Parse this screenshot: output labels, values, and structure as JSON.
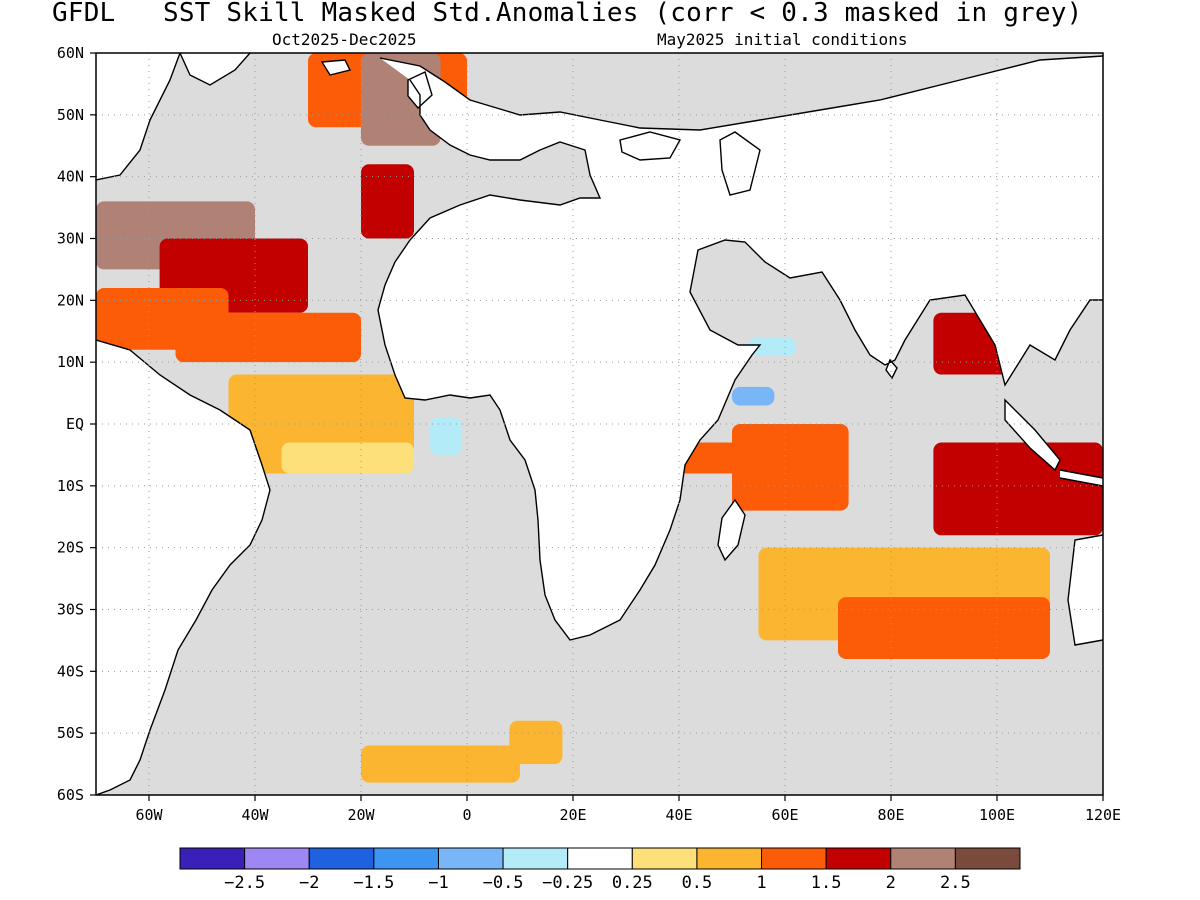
{
  "title": "GFDL   SST Skill Masked Std.Anomalies (corr < 0.3 masked in grey)",
  "subtitle_left": "Oct2025-Dec2025",
  "subtitle_right": "May2025 initial conditions",
  "map": {
    "lon_range": [
      -70,
      120
    ],
    "lat_range": [
      -60,
      60
    ],
    "gridlines": "dotted",
    "mask_color": "#dcdcdc",
    "land_color": "#ffffff",
    "coastline_color": "#000000"
  },
  "lat_ticks": [
    {
      "value": 60,
      "label": "60N"
    },
    {
      "value": 50,
      "label": "50N"
    },
    {
      "value": 40,
      "label": "40N"
    },
    {
      "value": 30,
      "label": "30N"
    },
    {
      "value": 20,
      "label": "20N"
    },
    {
      "value": 10,
      "label": "10N"
    },
    {
      "value": 0,
      "label": "EQ"
    },
    {
      "value": -10,
      "label": "10S"
    },
    {
      "value": -20,
      "label": "20S"
    },
    {
      "value": -30,
      "label": "30S"
    },
    {
      "value": -40,
      "label": "40S"
    },
    {
      "value": -50,
      "label": "50S"
    },
    {
      "value": -60,
      "label": "60S"
    }
  ],
  "lon_ticks": [
    {
      "value": -60,
      "label": "60W"
    },
    {
      "value": -40,
      "label": "40W"
    },
    {
      "value": -20,
      "label": "20W"
    },
    {
      "value": 0,
      "label": "0"
    },
    {
      "value": 20,
      "label": "20E"
    },
    {
      "value": 40,
      "label": "40E"
    },
    {
      "value": 60,
      "label": "60E"
    },
    {
      "value": 80,
      "label": "80E"
    },
    {
      "value": 100,
      "label": "100E"
    },
    {
      "value": 120,
      "label": "120E"
    }
  ],
  "colorbar": {
    "colors": [
      "#3a1fb8",
      "#9e87f3",
      "#1f62e0",
      "#3d95f2",
      "#78b6f8",
      "#b3ecf8",
      "#ffffff",
      "#fde07a",
      "#fcb531",
      "#fc5c08",
      "#c20000",
      "#b08276",
      "#7a4b3c"
    ],
    "labels": [
      "-2.5",
      "-2",
      "-1.5",
      "-1",
      "-0.5",
      "-0.25",
      "0.25",
      "0.5",
      "1",
      "1.5",
      "2",
      "2.5"
    ]
  },
  "chart_data": {
    "type": "heatmap",
    "title": "GFDL   SST Skill Masked Std.Anomalies (corr < 0.3 masked in grey)",
    "valid_period": "Oct2025-Dec2025",
    "initial_conditions": "May2025 initial conditions",
    "xlim": [
      -70,
      120
    ],
    "ylim": [
      -60,
      60
    ],
    "levels": [
      -2.5,
      -2,
      -1.5,
      -1,
      -0.5,
      -0.25,
      0.25,
      0.5,
      1,
      1.5,
      2,
      2.5
    ],
    "regions": [
      {
        "lon": [
          -70,
          -40
        ],
        "lat": [
          25,
          36
        ],
        "value": 2.2
      },
      {
        "lon": [
          -58,
          -30
        ],
        "lat": [
          18,
          30
        ],
        "value": 1.8
      },
      {
        "lon": [
          -70,
          -45
        ],
        "lat": [
          12,
          22
        ],
        "value": 1.3
      },
      {
        "lon": [
          -55,
          -20
        ],
        "lat": [
          10,
          18
        ],
        "value": 1.3
      },
      {
        "lon": [
          -45,
          -10
        ],
        "lat": [
          -8,
          8
        ],
        "value": 0.75
      },
      {
        "lon": [
          -35,
          -10
        ],
        "lat": [
          -8,
          -3
        ],
        "value": 0.4
      },
      {
        "lon": [
          -30,
          0
        ],
        "lat": [
          48,
          60
        ],
        "value": 1.2
      },
      {
        "lon": [
          -20,
          -5
        ],
        "lat": [
          45,
          60
        ],
        "value": 2.3
      },
      {
        "lon": [
          -20,
          -10
        ],
        "lat": [
          30,
          42
        ],
        "value": 1.8
      },
      {
        "lon": [
          -7,
          -1
        ],
        "lat": [
          -5,
          1
        ],
        "value": -0.3
      },
      {
        "lon": [
          53,
          62
        ],
        "lat": [
          11,
          14
        ],
        "value": -0.3
      },
      {
        "lon": [
          50,
          58
        ],
        "lat": [
          3,
          6
        ],
        "value": -0.6
      },
      {
        "lon": [
          50,
          72
        ],
        "lat": [
          -14,
          0
        ],
        "value": 1.2
      },
      {
        "lon": [
          40,
          55
        ],
        "lat": [
          -8,
          -3
        ],
        "value": 1.3
      },
      {
        "lon": [
          88,
          102
        ],
        "lat": [
          8,
          18
        ],
        "value": 1.8
      },
      {
        "lon": [
          88,
          120
        ],
        "lat": [
          -18,
          -3
        ],
        "value": 1.9
      },
      {
        "lon": [
          55,
          110
        ],
        "lat": [
          -35,
          -20
        ],
        "value": 0.9
      },
      {
        "lon": [
          70,
          110
        ],
        "lat": [
          -38,
          -28
        ],
        "value": 1.4
      },
      {
        "lon": [
          -20,
          10
        ],
        "lat": [
          -58,
          -52
        ],
        "value": 0.6
      },
      {
        "lon": [
          8,
          18
        ],
        "lat": [
          -55,
          -48
        ],
        "value": 0.8
      }
    ]
  }
}
